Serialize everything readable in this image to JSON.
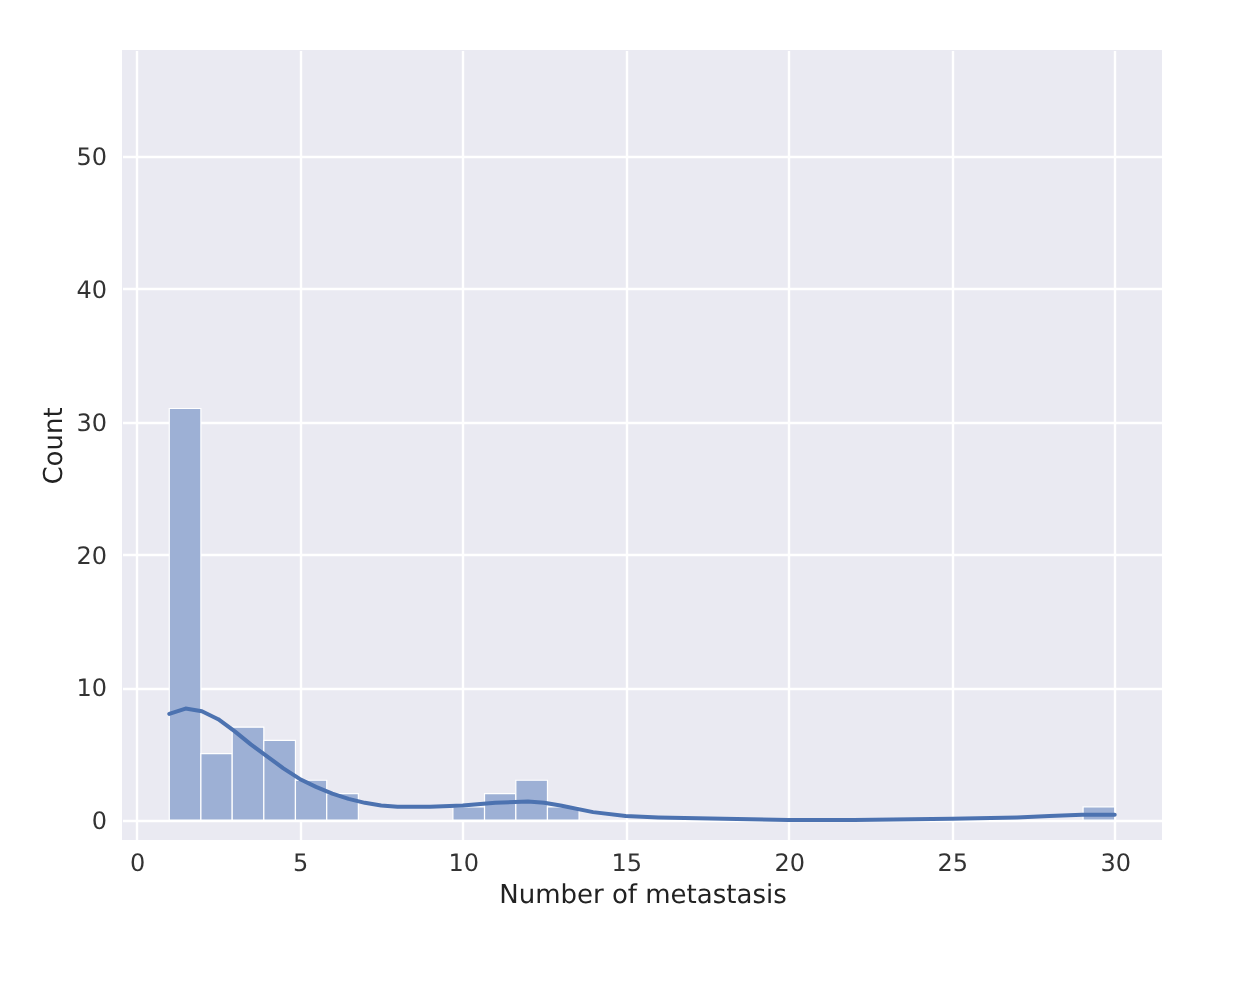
{
  "chart_data": {
    "type": "histogram",
    "xlabel": "Number of metastasis",
    "ylabel": "Count",
    "series": [
      {
        "type": "histogram",
        "color": "#9db0d5",
        "bins": [
          1,
          1.97,
          2.93,
          3.9,
          4.87,
          5.83,
          6.8,
          7.77,
          8.73,
          9.7,
          10.67,
          11.63,
          12.6,
          13.57,
          14.53,
          15.5,
          16.47,
          17.43,
          18.4,
          19.37,
          20.33,
          21.3,
          22.27,
          23.23,
          24.2,
          25.17,
          26.13,
          27.1,
          28.07,
          29.03,
          30
        ],
        "values": [
          31,
          5,
          7,
          6,
          3,
          2,
          0,
          0,
          0,
          1,
          2,
          3,
          1,
          0,
          0,
          0,
          0,
          0,
          0,
          0,
          0,
          0,
          0,
          0,
          0,
          0,
          0,
          0,
          0,
          1
        ]
      },
      {
        "type": "line",
        "color": "#4c72b0",
        "x": [
          1,
          1.5,
          2,
          2.5,
          3,
          3.5,
          4,
          4.5,
          5,
          5.5,
          6,
          6.5,
          7,
          7.5,
          8,
          9,
          10,
          11,
          12,
          12.5,
          13,
          14,
          15,
          16,
          18,
          20,
          22,
          25,
          27,
          28,
          29,
          30
        ],
        "values": [
          8,
          8.4,
          8.2,
          7.6,
          6.7,
          5.7,
          4.8,
          3.9,
          3.1,
          2.5,
          2,
          1.6,
          1.3,
          1.1,
          1,
          1,
          1.1,
          1.3,
          1.4,
          1.3,
          1.1,
          0.6,
          0.3,
          0.2,
          0.1,
          0,
          0,
          0.1,
          0.2,
          0.3,
          0.4,
          0.4
        ]
      }
    ],
    "xlim": [
      -0.45,
      31.45
    ],
    "ylim": [
      -1.5,
      58
    ],
    "xticks": [
      0,
      5,
      10,
      15,
      20,
      25,
      30
    ],
    "yticks": [
      0,
      10,
      20,
      30,
      40,
      50
    ],
    "grid": true
  }
}
